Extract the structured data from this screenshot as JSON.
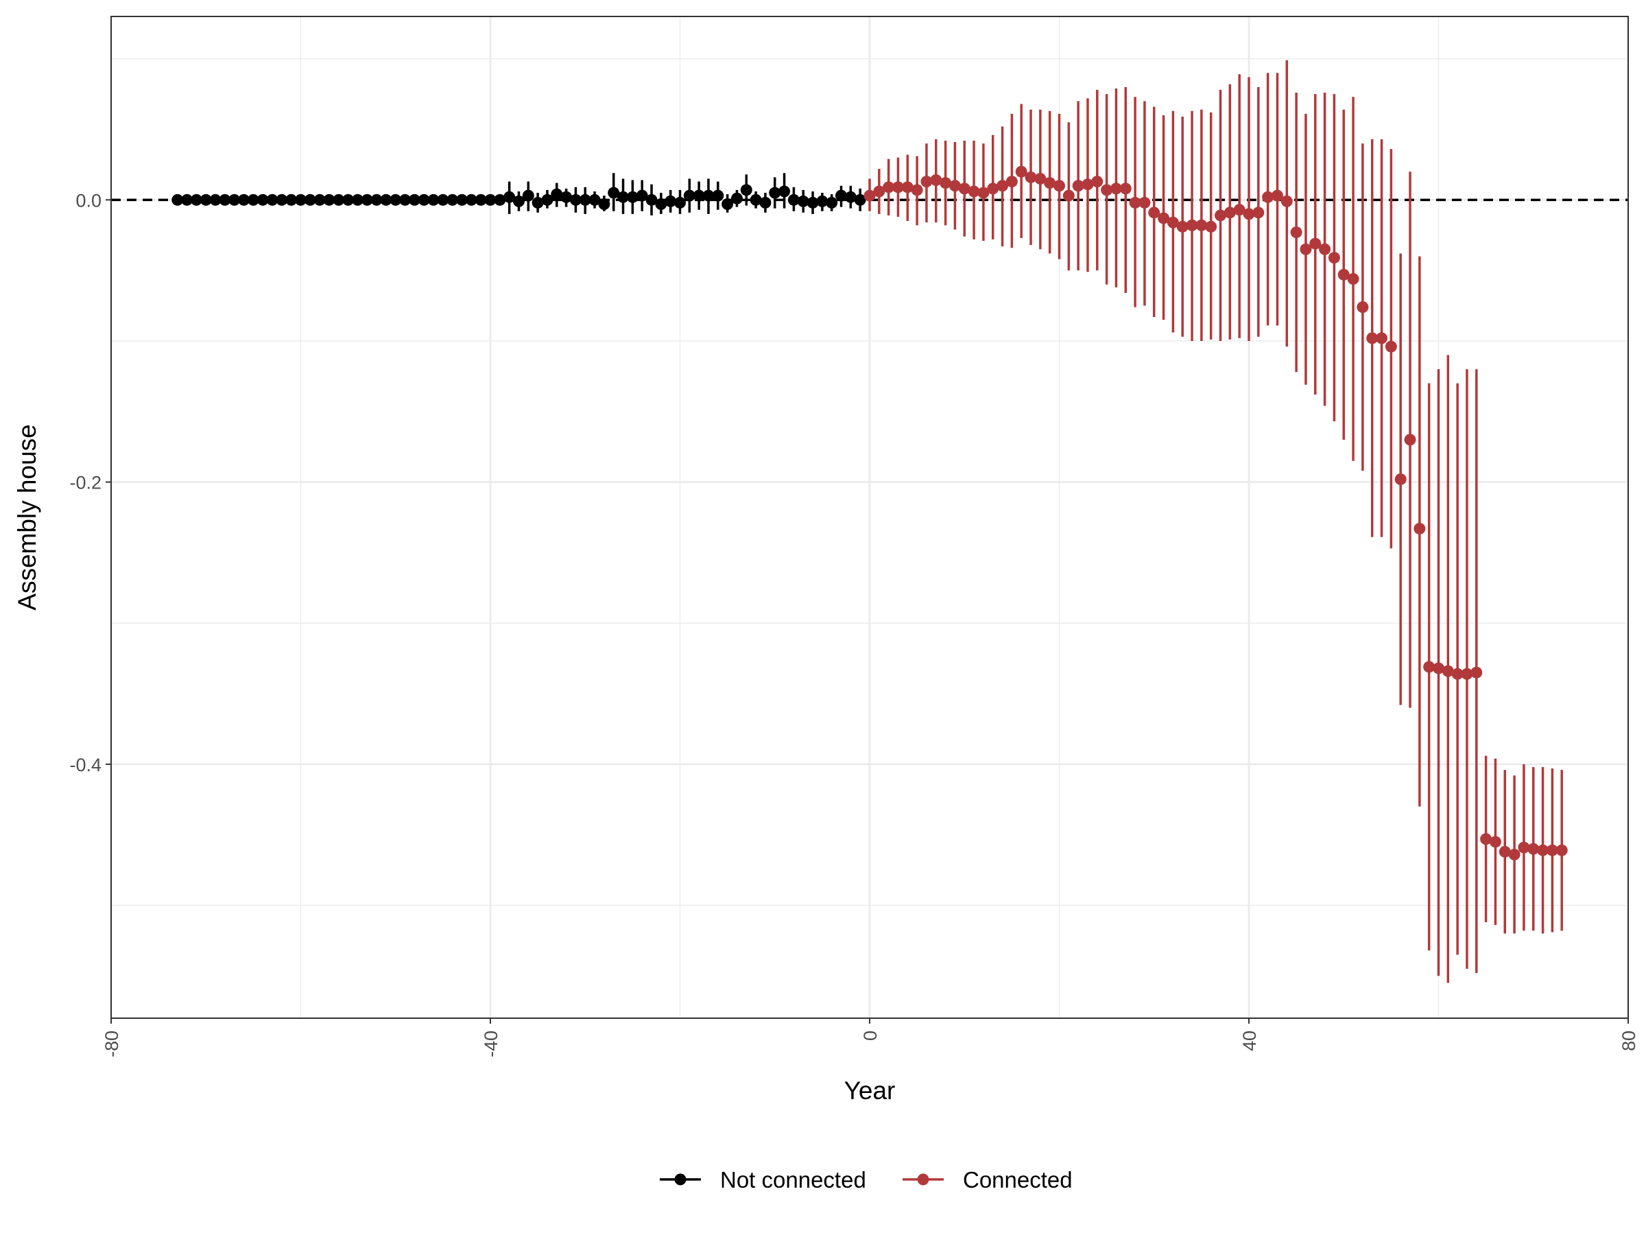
{
  "chart_data": {
    "type": "scatter",
    "title": "",
    "xlabel": "Year",
    "ylabel": "Assembly house",
    "xlim": [
      -80,
      80
    ],
    "ylim": [
      -0.58,
      0.13
    ],
    "x_ticks": [
      -80,
      -40,
      0,
      40,
      80
    ],
    "x_tick_labels": [
      "-80",
      "-40",
      "0",
      "40",
      "80"
    ],
    "y_ticks": [
      0.0,
      -0.2,
      -0.4
    ],
    "y_tick_labels": [
      "0.0",
      "-0.2",
      "-0.4"
    ],
    "grid": true,
    "reference_line": {
      "y": 0,
      "style": "dashed"
    },
    "legend_position": "bottom",
    "colors": {
      "not_connected": "#000000",
      "connected": "#b2393b"
    },
    "series": [
      {
        "name": "Not connected",
        "color": "#000000",
        "points": [
          {
            "x": -73,
            "y": 0.0,
            "lo": 0.0,
            "hi": 0.0
          },
          {
            "x": -72,
            "y": 0.0,
            "lo": 0.0,
            "hi": 0.0
          },
          {
            "x": -71,
            "y": 0.0,
            "lo": 0.0,
            "hi": 0.0
          },
          {
            "x": -70,
            "y": 0.0,
            "lo": 0.0,
            "hi": 0.0
          },
          {
            "x": -69,
            "y": 0.0,
            "lo": 0.0,
            "hi": 0.0
          },
          {
            "x": -68,
            "y": 0.0,
            "lo": 0.0,
            "hi": 0.0
          },
          {
            "x": -67,
            "y": 0.0,
            "lo": 0.0,
            "hi": 0.0
          },
          {
            "x": -66,
            "y": 0.0,
            "lo": 0.0,
            "hi": 0.0
          },
          {
            "x": -65,
            "y": 0.0,
            "lo": 0.0,
            "hi": 0.0
          },
          {
            "x": -64,
            "y": 0.0,
            "lo": 0.0,
            "hi": 0.0
          },
          {
            "x": -63,
            "y": 0.0,
            "lo": 0.0,
            "hi": 0.0
          },
          {
            "x": -62,
            "y": 0.0,
            "lo": 0.0,
            "hi": 0.0
          },
          {
            "x": -61,
            "y": 0.0,
            "lo": 0.0,
            "hi": 0.0
          },
          {
            "x": -60,
            "y": 0.0,
            "lo": 0.0,
            "hi": 0.0
          },
          {
            "x": -59,
            "y": 0.0,
            "lo": 0.0,
            "hi": 0.0
          },
          {
            "x": -58,
            "y": 0.0,
            "lo": 0.0,
            "hi": 0.0
          },
          {
            "x": -57,
            "y": 0.0,
            "lo": 0.0,
            "hi": 0.0
          },
          {
            "x": -56,
            "y": 0.0,
            "lo": 0.0,
            "hi": 0.0
          },
          {
            "x": -55,
            "y": 0.0,
            "lo": 0.0,
            "hi": 0.0
          },
          {
            "x": -54,
            "y": 0.0,
            "lo": 0.0,
            "hi": 0.0
          },
          {
            "x": -53,
            "y": 0.0,
            "lo": 0.0,
            "hi": 0.0
          },
          {
            "x": -52,
            "y": 0.0,
            "lo": 0.0,
            "hi": 0.0
          },
          {
            "x": -51,
            "y": 0.0,
            "lo": 0.0,
            "hi": 0.0
          },
          {
            "x": -50,
            "y": 0.0,
            "lo": 0.0,
            "hi": 0.0
          },
          {
            "x": -49,
            "y": 0.0,
            "lo": 0.0,
            "hi": 0.0
          },
          {
            "x": -48,
            "y": 0.0,
            "lo": 0.0,
            "hi": 0.0
          },
          {
            "x": -47,
            "y": 0.0,
            "lo": 0.0,
            "hi": 0.0
          },
          {
            "x": -46,
            "y": 0.0,
            "lo": 0.0,
            "hi": 0.0
          },
          {
            "x": -45,
            "y": 0.0,
            "lo": 0.0,
            "hi": 0.0
          },
          {
            "x": -44,
            "y": 0.0,
            "lo": 0.0,
            "hi": 0.0
          },
          {
            "x": -43,
            "y": 0.0,
            "lo": 0.0,
            "hi": 0.0
          },
          {
            "x": -42,
            "y": 0.0,
            "lo": 0.0,
            "hi": 0.0
          },
          {
            "x": -41,
            "y": 0.0,
            "lo": 0.0,
            "hi": 0.0
          },
          {
            "x": -40,
            "y": 0.0,
            "lo": 0.0,
            "hi": 0.0
          },
          {
            "x": -39,
            "y": 0.0,
            "lo": -0.002,
            "hi": 0.002
          },
          {
            "x": -38,
            "y": 0.002,
            "lo": -0.01,
            "hi": 0.013
          },
          {
            "x": -37,
            "y": -0.001,
            "lo": -0.008,
            "hi": 0.006
          },
          {
            "x": -36,
            "y": 0.003,
            "lo": -0.008,
            "hi": 0.013
          },
          {
            "x": -35,
            "y": -0.002,
            "lo": -0.009,
            "hi": 0.005
          },
          {
            "x": -34,
            "y": 0.0,
            "lo": -0.006,
            "hi": 0.007
          },
          {
            "x": -33,
            "y": 0.004,
            "lo": -0.005,
            "hi": 0.012
          },
          {
            "x": -32,
            "y": 0.002,
            "lo": -0.005,
            "hi": 0.008
          },
          {
            "x": -31,
            "y": 0.0,
            "lo": -0.009,
            "hi": 0.009
          },
          {
            "x": -30,
            "y": 0.0,
            "lo": -0.01,
            "hi": 0.009
          },
          {
            "x": -29,
            "y": 0.0,
            "lo": -0.006,
            "hi": 0.006
          },
          {
            "x": -28,
            "y": -0.003,
            "lo": -0.008,
            "hi": 0.003
          },
          {
            "x": -27,
            "y": 0.005,
            "lo": -0.008,
            "hi": 0.019
          },
          {
            "x": -26,
            "y": 0.002,
            "lo": -0.01,
            "hi": 0.015
          },
          {
            "x": -25,
            "y": 0.002,
            "lo": -0.01,
            "hi": 0.014
          },
          {
            "x": -24,
            "y": 0.003,
            "lo": -0.008,
            "hi": 0.014
          },
          {
            "x": -23,
            "y": 0.0,
            "lo": -0.011,
            "hi": 0.011
          },
          {
            "x": -22,
            "y": -0.003,
            "lo": -0.01,
            "hi": 0.005
          },
          {
            "x": -21,
            "y": -0.001,
            "lo": -0.009,
            "hi": 0.007
          },
          {
            "x": -20,
            "y": -0.002,
            "lo": -0.01,
            "hi": 0.007
          },
          {
            "x": -19,
            "y": 0.003,
            "lo": -0.009,
            "hi": 0.015
          },
          {
            "x": -18,
            "y": 0.003,
            "lo": -0.007,
            "hi": 0.013
          },
          {
            "x": -17,
            "y": 0.003,
            "lo": -0.01,
            "hi": 0.015
          },
          {
            "x": -16,
            "y": 0.003,
            "lo": -0.007,
            "hi": 0.013
          },
          {
            "x": -15,
            "y": -0.003,
            "lo": -0.009,
            "hi": 0.004
          },
          {
            "x": -14,
            "y": 0.001,
            "lo": -0.005,
            "hi": 0.007
          },
          {
            "x": -13,
            "y": 0.007,
            "lo": -0.004,
            "hi": 0.018
          },
          {
            "x": -12,
            "y": 0.0,
            "lo": -0.006,
            "hi": 0.006
          },
          {
            "x": -11,
            "y": -0.002,
            "lo": -0.009,
            "hi": 0.005
          },
          {
            "x": -10,
            "y": 0.005,
            "lo": -0.006,
            "hi": 0.016
          },
          {
            "x": -9,
            "y": 0.006,
            "lo": -0.006,
            "hi": 0.019
          },
          {
            "x": -8,
            "y": 0.0,
            "lo": -0.008,
            "hi": 0.009
          },
          {
            "x": -7,
            "y": -0.001,
            "lo": -0.009,
            "hi": 0.007
          },
          {
            "x": -6,
            "y": -0.002,
            "lo": -0.01,
            "hi": 0.006
          },
          {
            "x": -5,
            "y": -0.001,
            "lo": -0.008,
            "hi": 0.005
          },
          {
            "x": -4,
            "y": -0.002,
            "lo": -0.008,
            "hi": 0.004
          },
          {
            "x": -3,
            "y": 0.003,
            "lo": -0.005,
            "hi": 0.01
          },
          {
            "x": -2,
            "y": 0.002,
            "lo": -0.006,
            "hi": 0.01
          },
          {
            "x": -1,
            "y": 0.0,
            "lo": -0.008,
            "hi": 0.008
          }
        ]
      },
      {
        "name": "Connected",
        "color": "#b2393b",
        "points": [
          {
            "x": 0,
            "y": 0.003,
            "lo": -0.008,
            "hi": 0.015
          },
          {
            "x": 1,
            "y": 0.006,
            "lo": -0.01,
            "hi": 0.022
          },
          {
            "x": 2,
            "y": 0.009,
            "lo": -0.011,
            "hi": 0.029
          },
          {
            "x": 3,
            "y": 0.009,
            "lo": -0.012,
            "hi": 0.03
          },
          {
            "x": 4,
            "y": 0.009,
            "lo": -0.015,
            "hi": 0.032
          },
          {
            "x": 5,
            "y": 0.007,
            "lo": -0.018,
            "hi": 0.031
          },
          {
            "x": 6,
            "y": 0.013,
            "lo": -0.016,
            "hi": 0.04
          },
          {
            "x": 7,
            "y": 0.014,
            "lo": -0.016,
            "hi": 0.043
          },
          {
            "x": 8,
            "y": 0.012,
            "lo": -0.018,
            "hi": 0.042
          },
          {
            "x": 9,
            "y": 0.01,
            "lo": -0.021,
            "hi": 0.041
          },
          {
            "x": 10,
            "y": 0.008,
            "lo": -0.026,
            "hi": 0.042
          },
          {
            "x": 11,
            "y": 0.006,
            "lo": -0.028,
            "hi": 0.042
          },
          {
            "x": 12,
            "y": 0.005,
            "lo": -0.029,
            "hi": 0.04
          },
          {
            "x": 13,
            "y": 0.008,
            "lo": -0.028,
            "hi": 0.046
          },
          {
            "x": 14,
            "y": 0.01,
            "lo": -0.033,
            "hi": 0.052
          },
          {
            "x": 15,
            "y": 0.013,
            "lo": -0.034,
            "hi": 0.061
          },
          {
            "x": 16,
            "y": 0.02,
            "lo": -0.027,
            "hi": 0.068
          },
          {
            "x": 17,
            "y": 0.016,
            "lo": -0.032,
            "hi": 0.064
          },
          {
            "x": 18,
            "y": 0.015,
            "lo": -0.035,
            "hi": 0.064
          },
          {
            "x": 19,
            "y": 0.012,
            "lo": -0.038,
            "hi": 0.063
          },
          {
            "x": 20,
            "y": 0.01,
            "lo": -0.042,
            "hi": 0.061
          },
          {
            "x": 21,
            "y": 0.003,
            "lo": -0.05,
            "hi": 0.055
          },
          {
            "x": 22,
            "y": 0.01,
            "lo": -0.05,
            "hi": 0.07
          },
          {
            "x": 23,
            "y": 0.011,
            "lo": -0.051,
            "hi": 0.072
          },
          {
            "x": 24,
            "y": 0.013,
            "lo": -0.05,
            "hi": 0.078
          },
          {
            "x": 25,
            "y": 0.007,
            "lo": -0.06,
            "hi": 0.075
          },
          {
            "x": 26,
            "y": 0.008,
            "lo": -0.062,
            "hi": 0.079
          },
          {
            "x": 27,
            "y": 0.008,
            "lo": -0.066,
            "hi": 0.08
          },
          {
            "x": 28,
            "y": -0.002,
            "lo": -0.076,
            "hi": 0.073
          },
          {
            "x": 29,
            "y": -0.002,
            "lo": -0.075,
            "hi": 0.07
          },
          {
            "x": 30,
            "y": -0.009,
            "lo": -0.083,
            "hi": 0.066
          },
          {
            "x": 31,
            "y": -0.013,
            "lo": -0.085,
            "hi": 0.06
          },
          {
            "x": 32,
            "y": -0.016,
            "lo": -0.094,
            "hi": 0.063
          },
          {
            "x": 33,
            "y": -0.019,
            "lo": -0.097,
            "hi": 0.059
          },
          {
            "x": 34,
            "y": -0.018,
            "lo": -0.1,
            "hi": 0.063
          },
          {
            "x": 35,
            "y": -0.018,
            "lo": -0.1,
            "hi": 0.064
          },
          {
            "x": 36,
            "y": -0.019,
            "lo": -0.099,
            "hi": 0.062
          },
          {
            "x": 37,
            "y": -0.011,
            "lo": -0.1,
            "hi": 0.078
          },
          {
            "x": 38,
            "y": -0.009,
            "lo": -0.099,
            "hi": 0.082
          },
          {
            "x": 39,
            "y": -0.007,
            "lo": -0.098,
            "hi": 0.089
          },
          {
            "x": 40,
            "y": -0.01,
            "lo": -0.1,
            "hi": 0.087
          },
          {
            "x": 41,
            "y": -0.009,
            "lo": -0.097,
            "hi": 0.08
          },
          {
            "x": 42,
            "y": 0.002,
            "lo": -0.089,
            "hi": 0.09
          },
          {
            "x": 43,
            "y": 0.003,
            "lo": -0.089,
            "hi": 0.09
          },
          {
            "x": 44,
            "y": -0.001,
            "lo": -0.104,
            "hi": 0.099
          },
          {
            "x": 45,
            "y": -0.023,
            "lo": -0.122,
            "hi": 0.076
          },
          {
            "x": 46,
            "y": -0.035,
            "lo": -0.131,
            "hi": 0.061
          },
          {
            "x": 47,
            "y": -0.031,
            "lo": -0.138,
            "hi": 0.075
          },
          {
            "x": 48,
            "y": -0.035,
            "lo": -0.146,
            "hi": 0.076
          },
          {
            "x": 49,
            "y": -0.041,
            "lo": -0.157,
            "hi": 0.075
          },
          {
            "x": 50,
            "y": -0.053,
            "lo": -0.17,
            "hi": 0.064
          },
          {
            "x": 51,
            "y": -0.056,
            "lo": -0.185,
            "hi": 0.073
          },
          {
            "x": 52,
            "y": -0.076,
            "lo": -0.192,
            "hi": 0.04
          },
          {
            "x": 53,
            "y": -0.098,
            "lo": -0.239,
            "hi": 0.043
          },
          {
            "x": 54,
            "y": -0.098,
            "lo": -0.239,
            "hi": 0.043
          },
          {
            "x": 55,
            "y": -0.104,
            "lo": -0.247,
            "hi": 0.036
          },
          {
            "x": 56,
            "y": -0.198,
            "lo": -0.358,
            "hi": -0.038
          },
          {
            "x": 57,
            "y": -0.17,
            "lo": -0.36,
            "hi": 0.02
          },
          {
            "x": 58,
            "y": -0.233,
            "lo": -0.43,
            "hi": -0.04
          },
          {
            "x": 59,
            "y": -0.331,
            "lo": -0.532,
            "hi": -0.13
          },
          {
            "x": 60,
            "y": -0.332,
            "lo": -0.55,
            "hi": -0.12
          },
          {
            "x": 61,
            "y": -0.334,
            "lo": -0.555,
            "hi": -0.11
          },
          {
            "x": 62,
            "y": -0.336,
            "lo": -0.535,
            "hi": -0.13
          },
          {
            "x": 63,
            "y": -0.336,
            "lo": -0.545,
            "hi": -0.12
          },
          {
            "x": 64,
            "y": -0.335,
            "lo": -0.548,
            "hi": -0.12
          },
          {
            "x": 65,
            "y": -0.453,
            "lo": -0.512,
            "hi": -0.394
          },
          {
            "x": 66,
            "y": -0.455,
            "lo": -0.514,
            "hi": -0.396
          },
          {
            "x": 67,
            "y": -0.462,
            "lo": -0.52,
            "hi": -0.404
          },
          {
            "x": 68,
            "y": -0.464,
            "lo": -0.52,
            "hi": -0.408
          },
          {
            "x": 69,
            "y": -0.459,
            "lo": -0.518,
            "hi": -0.4
          },
          {
            "x": 70,
            "y": -0.46,
            "lo": -0.518,
            "hi": -0.402
          },
          {
            "x": 71,
            "y": -0.461,
            "lo": -0.52,
            "hi": -0.402
          },
          {
            "x": 72,
            "y": -0.461,
            "lo": -0.519,
            "hi": -0.403
          },
          {
            "x": 73,
            "y": -0.461,
            "lo": -0.518,
            "hi": -0.404
          }
        ]
      }
    ]
  }
}
